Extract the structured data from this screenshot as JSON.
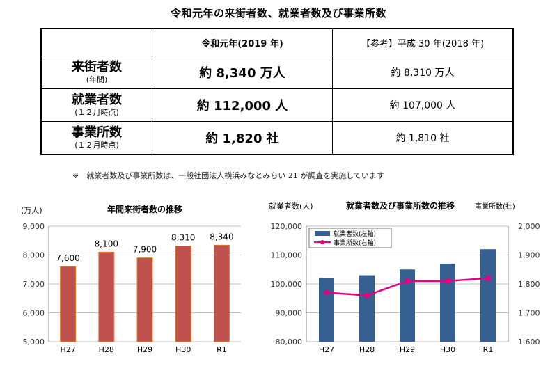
{
  "page_title": "令和元年の来街者数、就業者数及び事業所数",
  "table": {
    "header": {
      "blank": "",
      "current": "令和元年(2019 年)",
      "reference": "【参考】平成 30 年(2018 年)"
    },
    "rows": [
      {
        "label": "来街者数",
        "sub": "(年間)",
        "current": "約 8,340 万人",
        "reference": "約 8,310 万人"
      },
      {
        "label": "就業者数",
        "sub": "(１２月時点)",
        "current": "約 112,000 人",
        "reference": "約 107,000 人"
      },
      {
        "label": "事業所数",
        "sub": "(１２月時点)",
        "current": "約 1,820 社",
        "reference": "約 1,810 社"
      }
    ]
  },
  "note": "※　就業者数及び事業所数は、一般社団法人横浜みなとみらい 21 が調査を実施しています",
  "chart_data": [
    {
      "type": "bar",
      "title": "年間来街者数の推移",
      "ylabel": "(万人)",
      "categories": [
        "H27",
        "H28",
        "H29",
        "H30",
        "R1"
      ],
      "values": [
        7600,
        8100,
        7900,
        8310,
        8340
      ],
      "data_labels": [
        "7,600",
        "8,100",
        "7,900",
        "8,310",
        "8,340"
      ],
      "ylim": [
        5000,
        9000
      ],
      "yticks": [
        "5,000",
        "6,000",
        "7,000",
        "8,000",
        "9,000"
      ],
      "grid": true,
      "colors": {
        "bar": "#c0504d",
        "bar_edge": "#e07a1c"
      }
    },
    {
      "type": "bar+line",
      "title": "就業者数及び事業所数の推移",
      "ylabel_left": "就業者数(人)",
      "ylabel_right": "事業所数(社)",
      "categories": [
        "H27",
        "H28",
        "H29",
        "H30",
        "R1"
      ],
      "series": [
        {
          "name": "就業者数(左軸)",
          "type": "bar",
          "axis": "left",
          "values": [
            102000,
            103000,
            105000,
            107000,
            112000
          ],
          "color": "#376092"
        },
        {
          "name": "事業所数(右軸)",
          "type": "line",
          "axis": "right",
          "values": [
            1770,
            1760,
            1810,
            1810,
            1820
          ],
          "color": "#e6007e"
        }
      ],
      "ylim_left": [
        80000,
        120000
      ],
      "yticks_left": [
        "80,000",
        "90,000",
        "100,000",
        "110,000",
        "120,000"
      ],
      "ylim_right": [
        1600,
        2000
      ],
      "yticks_right": [
        "1,600",
        "1,700",
        "1,800",
        "1,900",
        "2,000"
      ],
      "legend": "top-left",
      "grid": true
    }
  ]
}
